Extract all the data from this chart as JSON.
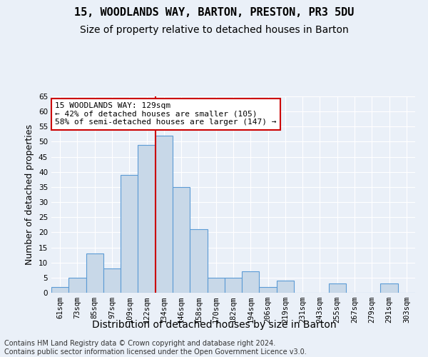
{
  "title1": "15, WOODLANDS WAY, BARTON, PRESTON, PR3 5DU",
  "title2": "Size of property relative to detached houses in Barton",
  "xlabel": "Distribution of detached houses by size in Barton",
  "ylabel": "Number of detached properties",
  "categories": [
    "61sqm",
    "73sqm",
    "85sqm",
    "97sqm",
    "109sqm",
    "122sqm",
    "134sqm",
    "146sqm",
    "158sqm",
    "170sqm",
    "182sqm",
    "194sqm",
    "206sqm",
    "219sqm",
    "231sqm",
    "243sqm",
    "255sqm",
    "267sqm",
    "279sqm",
    "291sqm",
    "303sqm"
  ],
  "values": [
    2,
    5,
    13,
    8,
    39,
    49,
    52,
    35,
    21,
    5,
    5,
    7,
    2,
    4,
    0,
    0,
    3,
    0,
    0,
    3,
    0
  ],
  "bar_color": "#c8d8e8",
  "bar_edge_color": "#5b9bd5",
  "vline_x": 5.5,
  "vline_color": "#cc0000",
  "ylim": [
    0,
    65
  ],
  "yticks": [
    0,
    5,
    10,
    15,
    20,
    25,
    30,
    35,
    40,
    45,
    50,
    55,
    60,
    65
  ],
  "annotation_line1": "15 WOODLANDS WAY: 129sqm",
  "annotation_line2": "← 42% of detached houses are smaller (105)",
  "annotation_line3": "58% of semi-detached houses are larger (147) →",
  "annotation_box_color": "#ffffff",
  "annotation_box_edge": "#cc0000",
  "footer": "Contains HM Land Registry data © Crown copyright and database right 2024.\nContains public sector information licensed under the Open Government Licence v3.0.",
  "background_color": "#eaf0f8",
  "plot_bg_color": "#eaf0f8",
  "grid_color": "#ffffff",
  "title1_fontsize": 11,
  "title2_fontsize": 10,
  "xlabel_fontsize": 10,
  "ylabel_fontsize": 9,
  "tick_fontsize": 7.5,
  "annotation_fontsize": 8,
  "footer_fontsize": 7
}
